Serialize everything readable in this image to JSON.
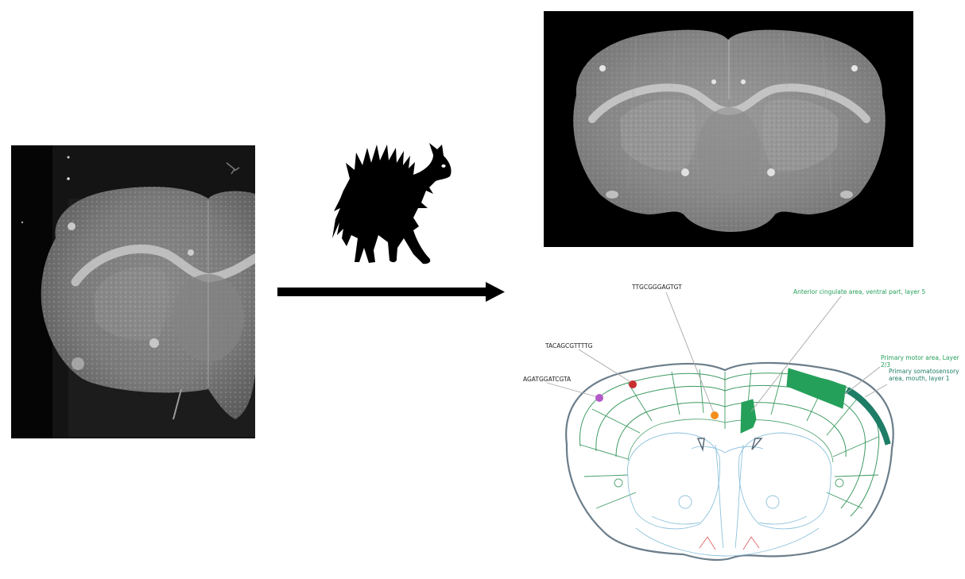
{
  "atlas": {
    "spot_labels": [
      {
        "text": "TTGCGGGAGTGT",
        "color": "#f28e1c"
      },
      {
        "text": "TACAGCGTTTTG",
        "color": "#c8302f"
      },
      {
        "text": "AGATGGATCGTA",
        "color": "#b35ac8"
      }
    ],
    "region_labels": [
      {
        "text": "Anterior cingulate area, ventral part, layer 5",
        "color": "#25a05a"
      },
      {
        "lines": [
          "Primary motor area, Layer",
          "2/3"
        ],
        "color": "#25a05a"
      },
      {
        "lines": [
          "Primary somatosensory",
          "area, mouth, layer 1"
        ],
        "color": "#1e7d66"
      }
    ]
  },
  "icons": [
    "brain-section-raw-image",
    "scared-cat-icon",
    "arrow-right-icon",
    "brain-section-registered-image",
    "brain-atlas-diagram"
  ]
}
